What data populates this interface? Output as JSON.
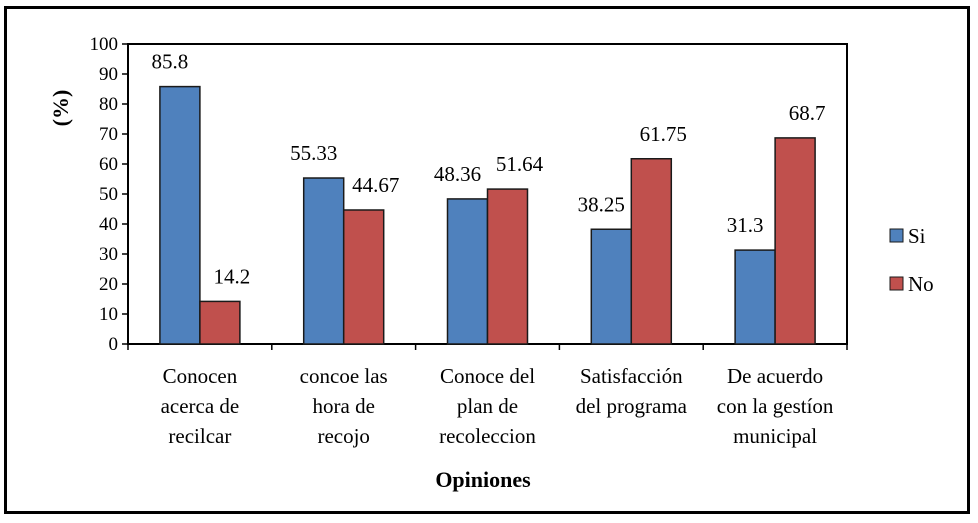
{
  "chart_data": {
    "type": "bar",
    "categories": [
      [
        "Conocen",
        "acerca de",
        "recilcar"
      ],
      [
        "concoe las",
        "hora de",
        "recojo"
      ],
      [
        "Conoce del",
        "plan de",
        "recoleccion"
      ],
      [
        "Satisfacción",
        "del programa"
      ],
      [
        "De acuerdo",
        "con la gestíon",
        "municipal"
      ]
    ],
    "series": [
      {
        "name": "Si",
        "values": [
          85.8,
          55.33,
          48.36,
          38.25,
          31.3
        ],
        "labels": [
          "85.8",
          "55.33",
          "48.36",
          "38.25",
          "31.3"
        ]
      },
      {
        "name": "No",
        "values": [
          14.2,
          44.67,
          51.64,
          61.75,
          68.7
        ],
        "labels": [
          "14.2",
          "44.67",
          "51.64",
          "61.75",
          "68.7"
        ]
      }
    ],
    "xlabel": "Opiniones",
    "ylabel": "(%)",
    "ylim": [
      0,
      100
    ],
    "yticks": [
      "0",
      "10",
      "20",
      "30",
      "40",
      "50",
      "60",
      "70",
      "80",
      "90",
      "100"
    ],
    "grid": false,
    "legend": "right",
    "colors": {
      "Si": "#4F81BD",
      "No": "#C0504D",
      "Si_stroke": "#1a1a1a",
      "No_stroke": "#1a1a1a"
    }
  }
}
